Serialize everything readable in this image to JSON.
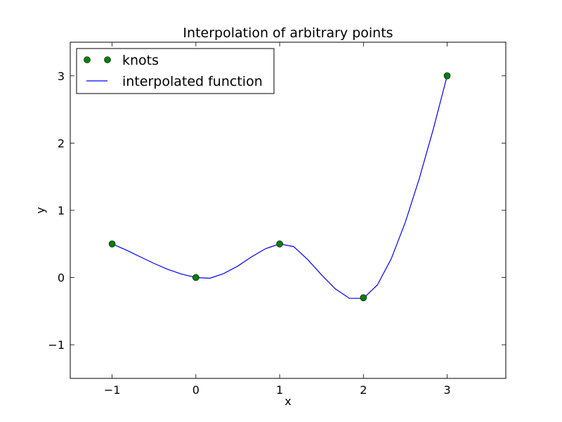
{
  "chart_data": {
    "type": "line",
    "title": "Interpolation of arbitrary points",
    "xlabel": "x",
    "ylabel": "y",
    "xlim": [
      -1.5,
      3.7
    ],
    "ylim": [
      -1.5,
      3.5
    ],
    "xticks": [
      -1,
      0,
      1,
      2,
      3
    ],
    "xtick_labels": [
      "−1",
      "0",
      "1",
      "2",
      "3"
    ],
    "yticks": [
      -1,
      0,
      1,
      2,
      3
    ],
    "ytick_labels": [
      "−1",
      "0",
      "1",
      "2",
      "3"
    ],
    "grid": false,
    "legend_position": "top-left",
    "series": [
      {
        "name": "knots",
        "style": "markers",
        "color": "#008000",
        "x": [
          -1,
          0,
          1,
          2,
          3
        ],
        "y": [
          0.5,
          0.0,
          0.5,
          -0.3,
          3.0
        ]
      },
      {
        "name": "interpolated function",
        "style": "line",
        "color": "#0000ff",
        "x": [
          -1,
          -0.833,
          -0.667,
          -0.5,
          -0.333,
          -0.167,
          0,
          0.167,
          0.333,
          0.5,
          0.667,
          0.833,
          1,
          1.167,
          1.333,
          1.5,
          1.667,
          1.833,
          2,
          2.167,
          2.333,
          2.5,
          2.667,
          2.833,
          3
        ],
        "y": [
          0.5,
          0.41,
          0.31,
          0.21,
          0.12,
          0.05,
          0.0,
          -0.01,
          0.06,
          0.17,
          0.31,
          0.43,
          0.5,
          0.46,
          0.27,
          0.04,
          -0.17,
          -0.31,
          -0.31,
          -0.11,
          0.28,
          0.82,
          1.47,
          2.2,
          3.0
        ]
      }
    ]
  }
}
